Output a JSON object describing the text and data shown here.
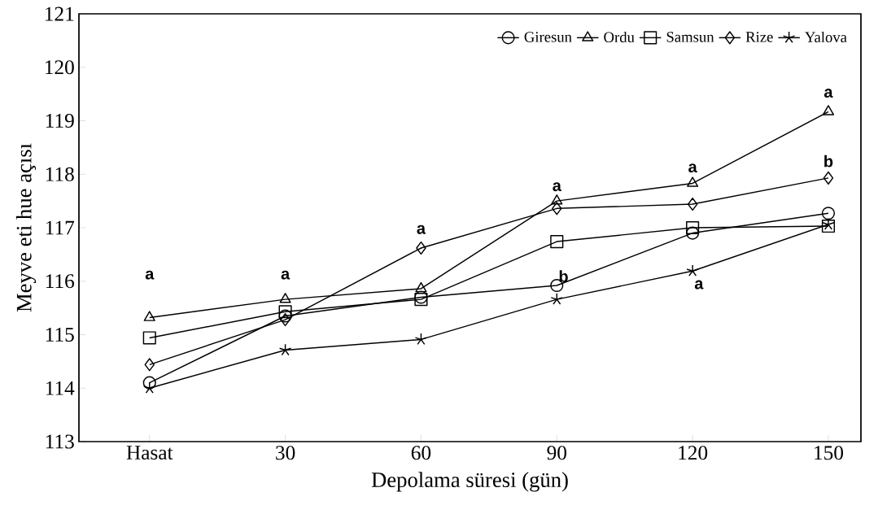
{
  "chart_data": {
    "type": "line",
    "xlabel": "Depolama süresi (gün)",
    "ylabel": "Meyve eti hue açısı",
    "categories": [
      "Hasat",
      "30",
      "60",
      "90",
      "120",
      "150"
    ],
    "series": [
      {
        "name": "Giresun",
        "color": "#000000",
        "marker": "circle",
        "values": [
          114.1,
          115.35,
          115.7,
          115.92,
          116.9,
          117.27
        ]
      },
      {
        "name": "Ordu",
        "color": "#000000",
        "marker": "triangle",
        "values": [
          115.32,
          115.66,
          115.86,
          117.5,
          117.83,
          119.17
        ]
      },
      {
        "name": "Samsun",
        "color": "#000000",
        "marker": "square",
        "values": [
          114.94,
          115.43,
          115.66,
          116.74,
          117.0,
          117.03
        ]
      },
      {
        "name": "Rize",
        "color": "#000000",
        "marker": "diamond",
        "values": [
          114.44,
          115.28,
          116.62,
          117.36,
          117.44,
          117.93
        ]
      },
      {
        "name": "Yalova",
        "color": "#000000",
        "marker": "cross",
        "values": [
          114.0,
          114.71,
          114.91,
          115.66,
          116.19,
          117.06
        ]
      }
    ],
    "ylim": [
      113,
      121
    ],
    "yticks": [
      113,
      114,
      115,
      116,
      117,
      118,
      119,
      120,
      121
    ],
    "grid": false,
    "legend": "top right",
    "line_style": "solid",
    "annotations": [
      "a",
      "a",
      "a",
      "a",
      "b",
      "a",
      "a",
      "a",
      "b"
    ]
  }
}
